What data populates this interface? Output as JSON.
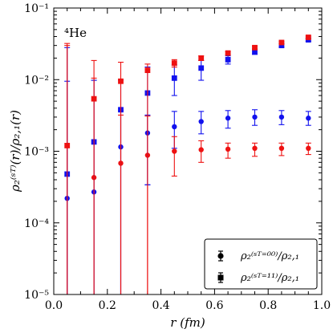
{
  "chart_data": {
    "type": "scatter",
    "annotation": "⁴He",
    "xlabel": "r (fm)",
    "ylabel": "ρ₂⁽ˢᵀ⁾(r)/ρ₂,₁(r)",
    "xlim": [
      0.0,
      1.0
    ],
    "ylim": [
      1e-05,
      0.1
    ],
    "yscale": "log",
    "xticks": [
      0.0,
      0.2,
      0.4,
      0.6,
      0.8,
      1.0
    ],
    "xtick_labels": [
      "0.0",
      "0.2",
      "0.4",
      "0.6",
      "0.8",
      "1.0"
    ],
    "yticks": [
      1e-05,
      0.0001,
      0.001,
      0.01,
      0.1
    ],
    "ytick_labels": [
      "10⁻⁵",
      "10⁻⁴",
      "10⁻³",
      "10⁻²",
      "10⁻¹"
    ],
    "legend": {
      "position": "bottom-right",
      "entries": [
        {
          "marker": "circle",
          "color": "#000000",
          "label": "ρ₂⁽ˢᵀ⁼⁰⁰⁾/ρ₂,₁"
        },
        {
          "marker": "square",
          "color": "#000000",
          "label": "ρ₂⁽ˢᵀ⁼¹¹⁾/ρ₂,₁"
        }
      ]
    },
    "series": [
      {
        "marker": "circle",
        "color": "#1111ee",
        "points": [
          {
            "x": 0.05,
            "y": 0.00022,
            "lo": 1e-05,
            "hi": 0.0095
          },
          {
            "x": 0.15,
            "y": 0.00027,
            "lo": 1e-05,
            "hi": 0.0098
          },
          {
            "x": 0.25,
            "y": 0.00115,
            "lo": 1e-05,
            "hi": 0.0037
          },
          {
            "x": 0.35,
            "y": 0.0018,
            "lo": 0.00034,
            "hi": 0.0032
          },
          {
            "x": 0.45,
            "y": 0.0022,
            "lo": 0.0011,
            "hi": 0.0036
          },
          {
            "x": 0.55,
            "y": 0.0026,
            "lo": 0.00175,
            "hi": 0.0036
          },
          {
            "x": 0.65,
            "y": 0.0029,
            "lo": 0.0021,
            "hi": 0.0037
          },
          {
            "x": 0.75,
            "y": 0.003,
            "lo": 0.0023,
            "hi": 0.0038
          },
          {
            "x": 0.85,
            "y": 0.003,
            "lo": 0.00235,
            "hi": 0.0037
          },
          {
            "x": 0.95,
            "y": 0.0029,
            "lo": 0.0023,
            "hi": 0.0036
          }
        ]
      },
      {
        "marker": "circle",
        "color": "#ee1111",
        "points": [
          {
            "x": 0.05,
            "y": 0.0012,
            "lo": 1e-05,
            "hi": 0.03
          },
          {
            "x": 0.15,
            "y": 0.00043,
            "lo": 1e-05,
            "hi": 0.0105
          },
          {
            "x": 0.25,
            "y": 0.00068,
            "lo": 1e-05,
            "hi": 0.0032
          },
          {
            "x": 0.35,
            "y": 0.00088,
            "lo": 1e-05,
            "hi": 0.0031
          },
          {
            "x": 0.45,
            "y": 0.001,
            "lo": 0.00045,
            "hi": 0.0016
          },
          {
            "x": 0.55,
            "y": 0.00105,
            "lo": 0.0007,
            "hi": 0.0014
          },
          {
            "x": 0.65,
            "y": 0.00107,
            "lo": 0.0008,
            "hi": 0.0013
          },
          {
            "x": 0.75,
            "y": 0.0011,
            "lo": 0.00085,
            "hi": 0.0013
          },
          {
            "x": 0.85,
            "y": 0.0011,
            "lo": 0.00087,
            "hi": 0.0013
          },
          {
            "x": 0.95,
            "y": 0.0011,
            "lo": 0.0009,
            "hi": 0.0013
          }
        ]
      },
      {
        "marker": "square",
        "color": "#1111ee",
        "points": [
          {
            "x": 0.05,
            "y": 0.00048,
            "lo": 1e-05,
            "hi": 0.028
          },
          {
            "x": 0.15,
            "y": 0.00135,
            "lo": 1e-05,
            "hi": 0.0098
          },
          {
            "x": 0.25,
            "y": 0.0038,
            "lo": 1e-05,
            "hi": 0.0098
          },
          {
            "x": 0.35,
            "y": 0.0065,
            "lo": 0.00034,
            "hi": 0.015
          },
          {
            "x": 0.45,
            "y": 0.0105,
            "lo": 0.006,
            "hi": 0.016
          },
          {
            "x": 0.55,
            "y": 0.0145,
            "lo": 0.0098,
            "hi": 0.0185
          },
          {
            "x": 0.65,
            "y": 0.019,
            "lo": 0.0165,
            "hi": 0.0215
          },
          {
            "x": 0.75,
            "y": 0.0245,
            "lo": 0.0225,
            "hi": 0.0265
          },
          {
            "x": 0.85,
            "y": 0.03,
            "lo": 0.0285,
            "hi": 0.0315
          },
          {
            "x": 0.95,
            "y": 0.036,
            "lo": 0.0345,
            "hi": 0.0375
          }
        ]
      },
      {
        "marker": "square",
        "color": "#ee1111",
        "points": [
          {
            "x": 0.05,
            "y": 0.0012,
            "lo": 1e-05,
            "hi": 0.032
          },
          {
            "x": 0.15,
            "y": 0.0054,
            "lo": 1e-05,
            "hi": 0.0185
          },
          {
            "x": 0.25,
            "y": 0.0095,
            "lo": 1e-05,
            "hi": 0.0175
          },
          {
            "x": 0.35,
            "y": 0.0135,
            "lo": 1e-05,
            "hi": 0.0165
          },
          {
            "x": 0.45,
            "y": 0.017,
            "lo": 0.015,
            "hi": 0.019
          },
          {
            "x": 0.55,
            "y": 0.02,
            "lo": 0.0185,
            "hi": 0.0215
          },
          {
            "x": 0.65,
            "y": 0.0235,
            "lo": 0.0225,
            "hi": 0.0245
          },
          {
            "x": 0.75,
            "y": 0.028,
            "lo": 0.027,
            "hi": 0.029
          },
          {
            "x": 0.85,
            "y": 0.033,
            "lo": 0.032,
            "hi": 0.034
          },
          {
            "x": 0.95,
            "y": 0.039,
            "lo": 0.0375,
            "hi": 0.0405
          }
        ]
      }
    ]
  }
}
